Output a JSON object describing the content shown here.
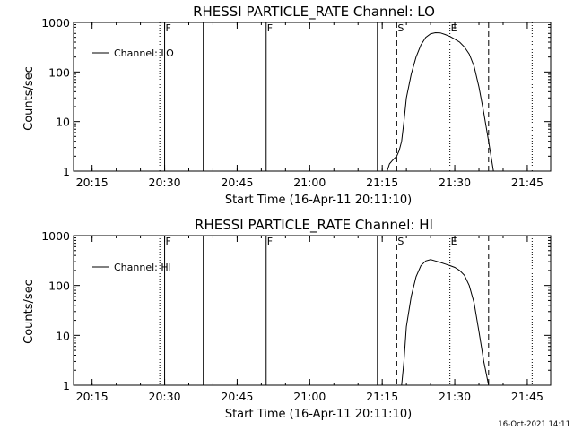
{
  "timestamp": "16-Oct-2021 14:11",
  "chart_data": [
    {
      "type": "line",
      "title": "RHESSI PARTICLE_RATE Channel: LO",
      "xlabel": "Start Time (16-Apr-11 20:11:10)",
      "ylabel": "Counts/sec",
      "y_scale": "log",
      "xlim": [
        "20:11:10",
        "21:49:50"
      ],
      "ylim": [
        1,
        1000
      ],
      "x_ticks": [
        "20:15",
        "20:30",
        "20:45",
        "21:00",
        "21:15",
        "21:30",
        "21:45"
      ],
      "y_ticks": [
        "1",
        "10",
        "100",
        "1000"
      ],
      "grid": false,
      "legend": {
        "placement": "top-left",
        "entries": [
          "Channel: LO"
        ]
      },
      "solid_markers": [
        "20:30",
        "20:38",
        "20:51",
        "21:14"
      ],
      "dotted_markers": [
        "20:29",
        "21:29",
        "21:46"
      ],
      "dashed_markers": [
        "21:18",
        "21:37"
      ],
      "marker_labels": [
        {
          "text": "F",
          "x": "20:30"
        },
        {
          "text": "F",
          "x": "20:51"
        },
        {
          "text": "S",
          "x": "21:18"
        },
        {
          "text": "E",
          "x": "21:29"
        }
      ],
      "series": [
        {
          "name": "Channel: LO",
          "x": [
            "21:16",
            "21:16:30",
            "21:17",
            "21:17:30",
            "21:18",
            "21:18:30",
            "21:19",
            "21:19:30",
            "21:20",
            "21:21",
            "21:22",
            "21:23",
            "21:24",
            "21:25",
            "21:26",
            "21:27",
            "21:28",
            "21:29",
            "21:30",
            "21:31",
            "21:32",
            "21:33",
            "21:34",
            "21:35",
            "21:36",
            "21:37",
            "21:37:30",
            "21:38"
          ],
          "y": [
            1.0,
            1.4,
            1.6,
            1.8,
            2.0,
            2.6,
            4.0,
            10,
            30,
            90,
            200,
            350,
            500,
            590,
            620,
            615,
            570,
            520,
            460,
            400,
            320,
            230,
            130,
            50,
            15,
            4,
            2,
            1.0
          ]
        }
      ]
    },
    {
      "type": "line",
      "title": "RHESSI PARTICLE_RATE Channel: HI",
      "xlabel": "Start Time (16-Apr-11 20:11:10)",
      "ylabel": "Counts/sec",
      "y_scale": "log",
      "xlim": [
        "20:11:10",
        "21:49:50"
      ],
      "ylim": [
        1,
        1000
      ],
      "x_ticks": [
        "20:15",
        "20:30",
        "20:45",
        "21:00",
        "21:15",
        "21:30",
        "21:45"
      ],
      "y_ticks": [
        "1",
        "10",
        "100",
        "1000"
      ],
      "grid": false,
      "legend": {
        "placement": "top-left",
        "entries": [
          "Channel: HI"
        ]
      },
      "solid_markers": [
        "20:30",
        "20:38",
        "20:51",
        "21:14"
      ],
      "dotted_markers": [
        "20:29",
        "21:29",
        "21:46"
      ],
      "dashed_markers": [
        "21:18",
        "21:37"
      ],
      "marker_labels": [
        {
          "text": "F",
          "x": "20:30"
        },
        {
          "text": "F",
          "x": "20:51"
        },
        {
          "text": "S",
          "x": "21:18"
        },
        {
          "text": "E",
          "x": "21:29"
        }
      ],
      "series": [
        {
          "name": "Channel: HI",
          "x": [
            "21:19",
            "21:19:30",
            "21:20",
            "21:21",
            "21:22",
            "21:23",
            "21:24",
            "21:25",
            "21:26",
            "21:27",
            "21:28",
            "21:29",
            "21:30",
            "21:31",
            "21:32",
            "21:33",
            "21:34",
            "21:35",
            "21:36",
            "21:37"
          ],
          "y": [
            1.0,
            3,
            15,
            60,
            150,
            250,
            310,
            330,
            310,
            290,
            270,
            250,
            230,
            200,
            160,
            100,
            45,
            12,
            3,
            1.0
          ]
        }
      ]
    }
  ]
}
